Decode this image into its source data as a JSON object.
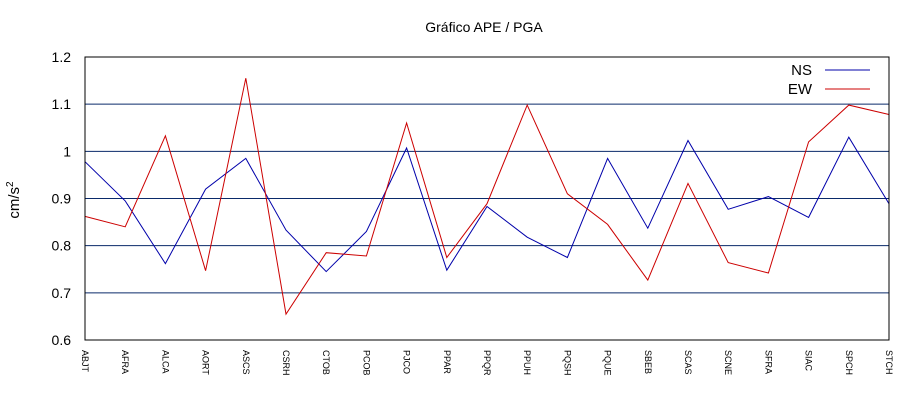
{
  "chart_data": {
    "type": "line",
    "title": "Gráfico  APE / PGA",
    "xlabel": "",
    "ylabel": "cm/s",
    "ylabel_superscript": "2",
    "ylim": [
      0.6,
      1.2
    ],
    "yticks": [
      "0.6",
      "0.7",
      "0.8",
      "0.9",
      "1",
      "1.1",
      "1.2"
    ],
    "grid": true,
    "legend_position": "top-right",
    "categories": [
      "ABJT",
      "AFRA",
      "ALCA",
      "AORT",
      "ASCS",
      "CSRH",
      "CTOB",
      "PCOB",
      "PJCO",
      "PPAR",
      "PPQR",
      "PPUH",
      "PQSH",
      "PQUE",
      "SBEB",
      "SCAS",
      "SCNE",
      "SFRA",
      "SIAC",
      "SPCH",
      "STCH"
    ],
    "series": [
      {
        "name": "NS",
        "color": "#0000aa",
        "values": [
          0.978,
          0.895,
          0.762,
          0.92,
          0.985,
          0.833,
          0.745,
          0.83,
          1.007,
          0.748,
          0.883,
          0.818,
          0.775,
          0.985,
          0.837,
          1.023,
          0.877,
          0.904,
          0.86,
          1.03,
          0.889
        ]
      },
      {
        "name": "EW",
        "color": "#cc0000",
        "values": [
          0.862,
          0.84,
          1.033,
          0.747,
          1.155,
          0.655,
          0.785,
          0.778,
          1.06,
          0.775,
          0.889,
          1.098,
          0.91,
          0.845,
          0.727,
          0.932,
          0.764,
          0.742,
          1.02,
          1.098,
          1.078
        ]
      }
    ]
  }
}
